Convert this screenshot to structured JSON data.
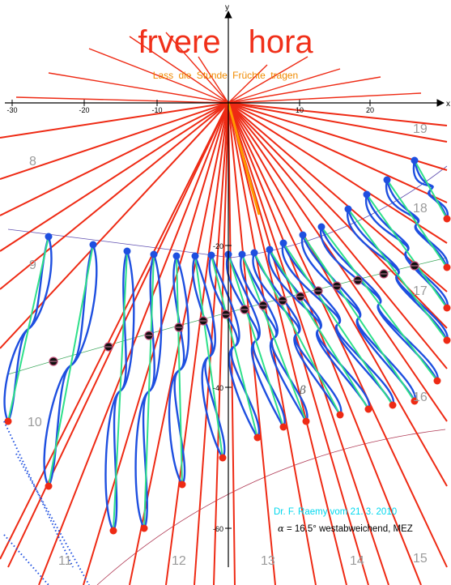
{
  "title": {
    "word1": "frvere",
    "word2": "hora"
  },
  "subtitle": "Lass die Stunde Früchte tragen",
  "credit": "Dr. F. Raemy vom 21. 3. 2010",
  "formula": {
    "symbol": "α",
    "rest": "= 16.5° westabweichend, MEZ"
  },
  "axes": {
    "x_label": "x",
    "y_label": "y",
    "x_ticks": [
      "-30",
      "-20",
      "-10",
      "10",
      "20"
    ],
    "y_ticks": [
      "-20",
      "-40",
      "-60"
    ]
  },
  "beta_label": "β",
  "hour_labels": [
    {
      "text": "8"
    },
    {
      "text": "9"
    },
    {
      "text": "10"
    },
    {
      "text": "11"
    },
    {
      "text": "12"
    },
    {
      "text": "13"
    },
    {
      "text": "14"
    },
    {
      "text": "15"
    },
    {
      "text": "16"
    },
    {
      "text": "17"
    },
    {
      "text": "18"
    },
    {
      "text": "19"
    }
  ],
  "colors": {
    "hour_line": "#ee2a14",
    "analemma": "#1e4fe0",
    "inner_curve": "#2ee08a",
    "gnomon": "#ff9900",
    "date_line": "#5f4fb0",
    "green_line": "#3aa65a",
    "winter_line": "#b03a55",
    "marker": "#101010",
    "marker_ring": "#c0507a",
    "title": "#f0301a",
    "subtitle": "#f08a00",
    "credit": "#00d8ee",
    "hour_label": "#9a9a9a"
  }
}
